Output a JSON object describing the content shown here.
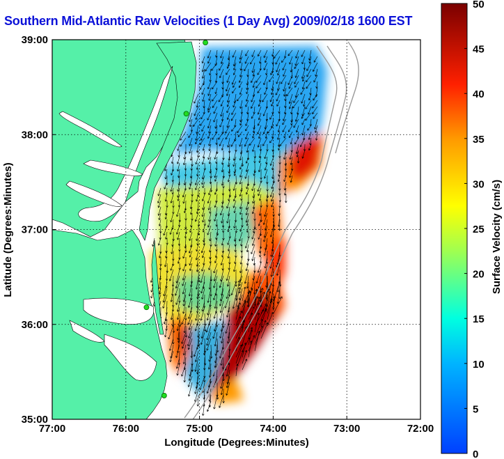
{
  "title": "Southern Mid-Atlantic Raw Velocities (1 Day Avg) 2009/02/18 1600 EST",
  "xlabel": "Longitude (Degrees:Minutes)",
  "ylabel": "Latitude (Degrees:Minutes)",
  "colorbar": {
    "label": "Surface Velocity (cm/s)",
    "min": 0,
    "max": 50,
    "ticks": [
      "0",
      "5",
      "10",
      "15",
      "20",
      "25",
      "30",
      "35",
      "40",
      "45",
      "50"
    ]
  },
  "map": {
    "lon_range": [
      -77,
      -72
    ],
    "lat_range": [
      35,
      39
    ],
    "xticks": [
      "77:00",
      "76:00",
      "75:00",
      "74:00",
      "73:00",
      "72:00"
    ],
    "yticks": [
      "35:00",
      "36:00",
      "37:00",
      "38:00",
      "39:00"
    ],
    "land_color": "#55f0a8",
    "grid": true,
    "station_sites": [
      {
        "lon": -74.92,
        "lat": 38.97
      },
      {
        "lon": -75.18,
        "lat": 38.22
      },
      {
        "lon": -75.72,
        "lat": 36.18
      },
      {
        "lon": -75.48,
        "lat": 35.25
      }
    ]
  }
}
